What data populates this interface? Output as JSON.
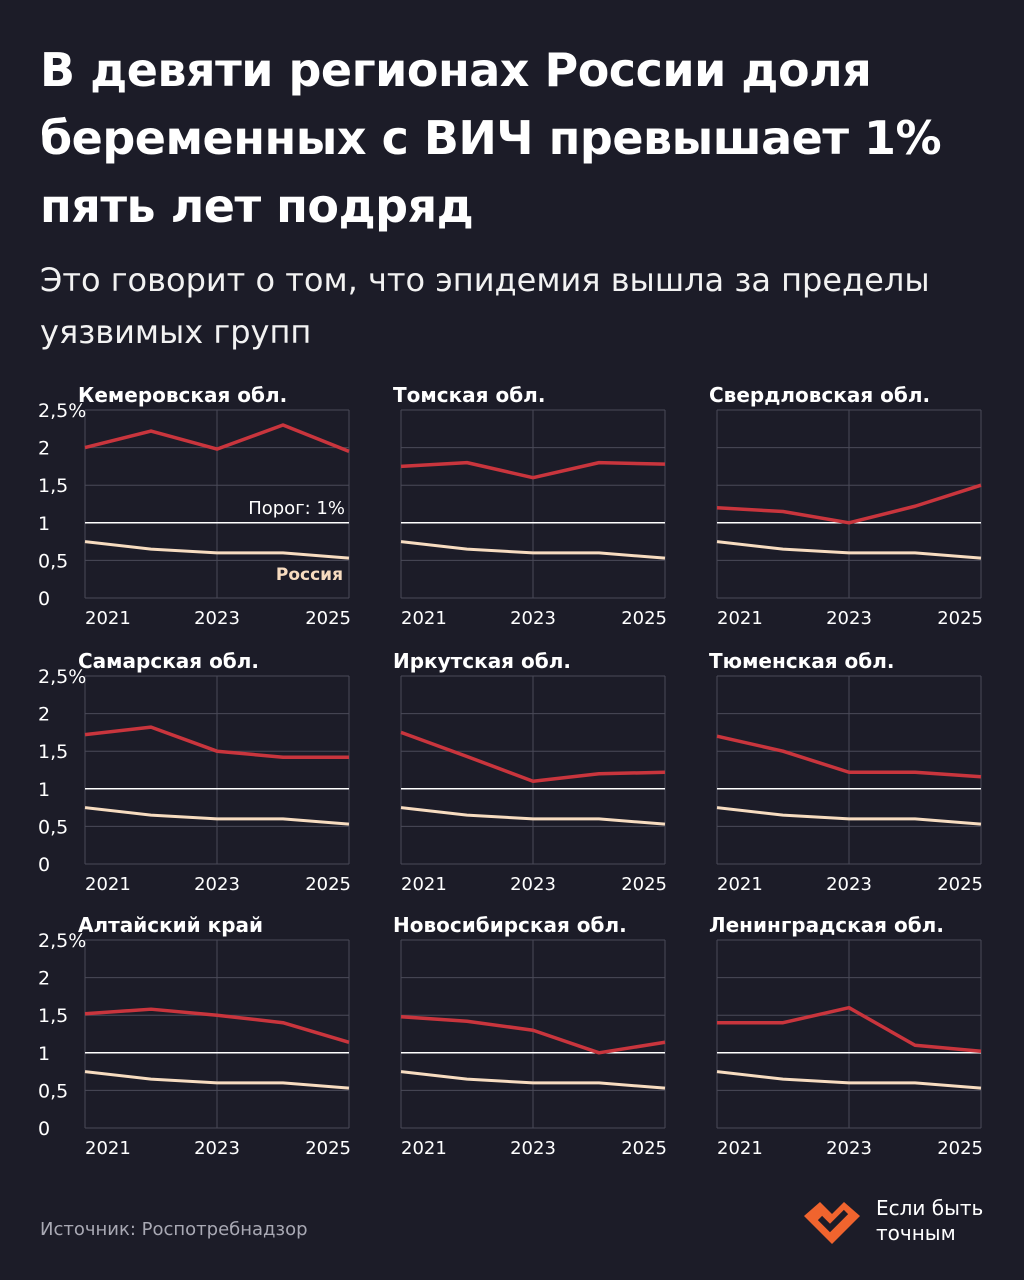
{
  "title": "В девяти регионах России доля беременных с ВИЧ превышает 1% пять лет подряд",
  "subtitle": "Это говорит о том, что эпидемия вышла за пределы уязвимых групп",
  "source": "Источник: Роспотребнадзор",
  "brand": {
    "line1": "Если быть",
    "line2": "точным",
    "logo_icon": "heart-check-icon",
    "logo_color": "#f0642e"
  },
  "colors": {
    "background": "#1c1c28",
    "region_line": "#c9353d",
    "russia_line": "#f7dcc0",
    "threshold_line": "#ffffff",
    "grid": "#4a4a58"
  },
  "chart_data": {
    "type": "line",
    "x": [
      2021,
      2022,
      2023,
      2024,
      2025
    ],
    "x_tick_labels": [
      "2021",
      "2023",
      "2025"
    ],
    "y_tick_labels": [
      "0",
      "0,5",
      "1",
      "1,5",
      "2",
      "2,5%"
    ],
    "ylim": [
      0,
      2.5
    ],
    "threshold": {
      "value": 1,
      "label": "Порог: 1%"
    },
    "russia": {
      "name": "Россия",
      "values": [
        0.75,
        0.65,
        0.6,
        0.6,
        0.53
      ]
    },
    "panels": [
      {
        "region": "Кемеровская обл.",
        "values": [
          2.0,
          2.22,
          1.98,
          2.3,
          1.95
        ]
      },
      {
        "region": "Томская обл.",
        "values": [
          1.75,
          1.8,
          1.6,
          1.8,
          1.78
        ]
      },
      {
        "region": "Свердловская обл.",
        "values": [
          1.2,
          1.15,
          1.0,
          1.22,
          1.5
        ]
      },
      {
        "region": "Самарская обл.",
        "values": [
          1.72,
          1.82,
          1.5,
          1.42,
          1.42
        ]
      },
      {
        "region": "Иркутская обл.",
        "values": [
          1.75,
          1.43,
          1.1,
          1.2,
          1.22
        ]
      },
      {
        "region": "Тюменская обл.",
        "values": [
          1.7,
          1.5,
          1.22,
          1.22,
          1.16
        ]
      },
      {
        "region": "Алтайский край",
        "values": [
          1.52,
          1.58,
          1.5,
          1.4,
          1.14
        ]
      },
      {
        "region": "Новосибирская обл.",
        "values": [
          1.48,
          1.42,
          1.3,
          1.0,
          1.14
        ]
      },
      {
        "region": "Ленинградская обл.",
        "values": [
          1.4,
          1.4,
          1.6,
          1.1,
          1.02
        ]
      }
    ]
  }
}
